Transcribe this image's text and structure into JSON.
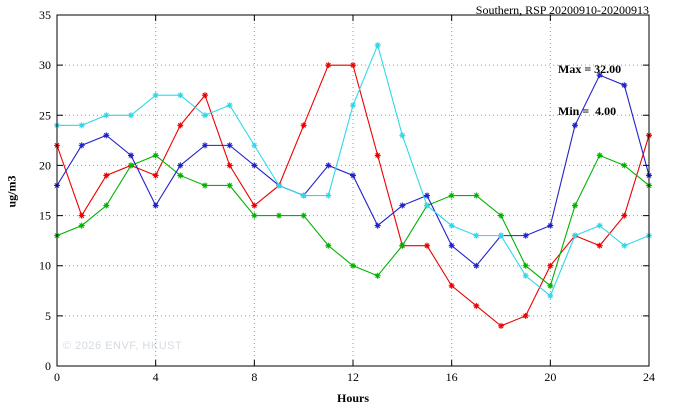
{
  "chart_data": {
    "type": "line",
    "title": "Southern, RSP 20200910-20200913",
    "xlabel": "Hours",
    "ylabel": "ug/m3",
    "xlim": [
      0,
      24
    ],
    "ylim": [
      0,
      35
    ],
    "x_ticks": [
      0,
      4,
      8,
      12,
      16,
      20,
      24
    ],
    "y_ticks": [
      0,
      5,
      10,
      15,
      20,
      25,
      30,
      35
    ],
    "grid": true,
    "legend": "none",
    "annotations": {
      "max_label": "Max = 32.00",
      "min_label": "Min =  4.00"
    },
    "watermark": "© 2026 ENVF, HKUST",
    "x": [
      0,
      1,
      2,
      3,
      4,
      5,
      6,
      7,
      8,
      9,
      10,
      11,
      12,
      13,
      14,
      15,
      16,
      17,
      18,
      19,
      20,
      21,
      22,
      23,
      24
    ],
    "series": [
      {
        "name": "red",
        "color": "#ee0000",
        "values": [
          22,
          15,
          19,
          20,
          19,
          24,
          27,
          20,
          16,
          18,
          24,
          30,
          30,
          21,
          12,
          12,
          8,
          6,
          4,
          5,
          10,
          13,
          12,
          15,
          23
        ]
      },
      {
        "name": "green",
        "color": "#00b400",
        "values": [
          13,
          14,
          16,
          20,
          21,
          19,
          18,
          18,
          15,
          15,
          15,
          12,
          10,
          9,
          12,
          16,
          17,
          17,
          15,
          10,
          8,
          16,
          21,
          20,
          18
        ]
      },
      {
        "name": "blue",
        "color": "#2222cc",
        "values": [
          18,
          22,
          23,
          21,
          16,
          20,
          22,
          22,
          20,
          18,
          17,
          20,
          19,
          14,
          16,
          17,
          12,
          10,
          13,
          13,
          14,
          24,
          29,
          28,
          19
        ]
      },
      {
        "name": "cyan",
        "color": "#2fd8e8",
        "values": [
          24,
          24,
          25,
          25,
          27,
          27,
          25,
          26,
          22,
          18,
          17,
          17,
          26,
          32,
          23,
          16,
          14,
          13,
          13,
          9,
          7,
          13,
          14,
          12,
          13
        ]
      }
    ]
  }
}
